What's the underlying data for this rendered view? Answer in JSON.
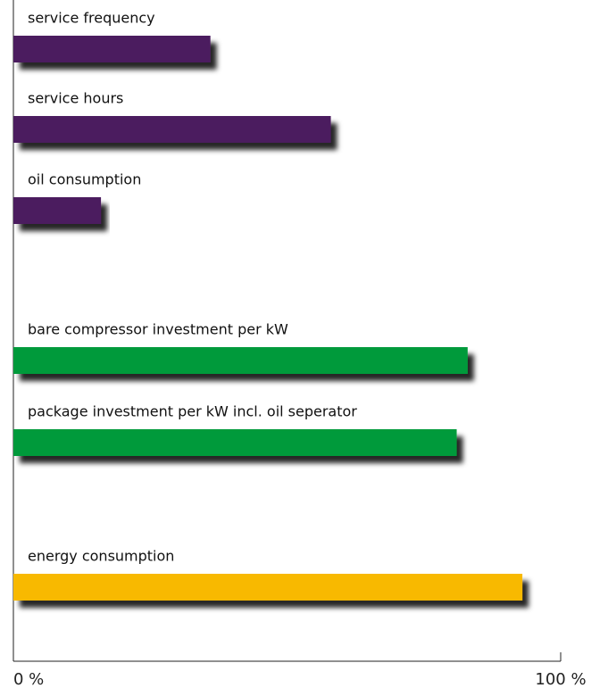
{
  "chart_data": {
    "type": "barh",
    "categories": [
      "service frequency",
      "service hours",
      "oil consumption",
      "bare compressor investment per kW",
      "package investment per kW incl. oil seperator",
      "energy consumption"
    ],
    "values": [
      36,
      58,
      16,
      83,
      81,
      93
    ],
    "colors": [
      "#4b1a5f",
      "#4b1a5f",
      "#4b1a5f",
      "#009a3b",
      "#009a3b",
      "#f8b900"
    ],
    "xlim": [
      0,
      100
    ],
    "xticks": [
      {
        "value": 0,
        "label": "0 %"
      },
      {
        "value": 100,
        "label": "100 %"
      }
    ]
  }
}
